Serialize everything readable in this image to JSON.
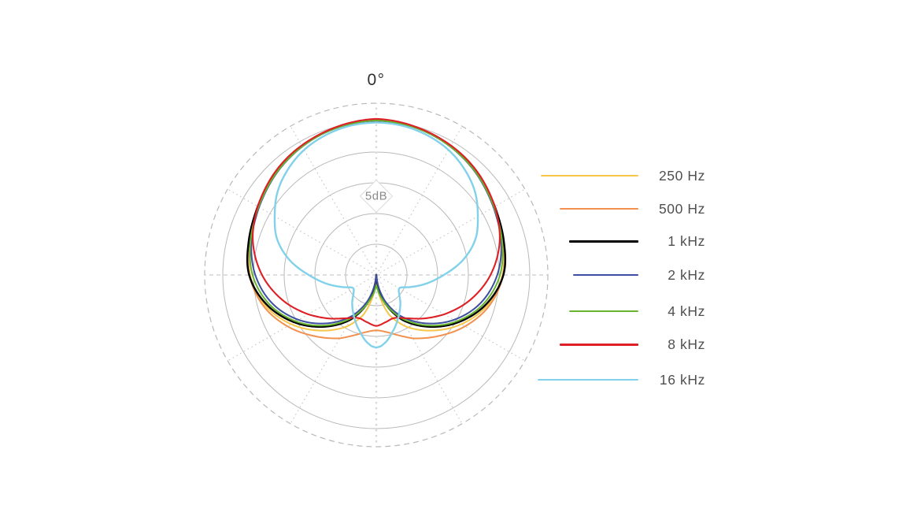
{
  "labels": {
    "zero_degree": "0°",
    "ring_label": "5dB"
  },
  "legend": {
    "items": [
      {
        "label": "250 Hz",
        "color": "#F6C649",
        "line_length": 124
      },
      {
        "label": "500 Hz",
        "color": "#F2914F",
        "line_length": 100
      },
      {
        "label": "1 kHz",
        "color": "#000000",
        "line_length": 88
      },
      {
        "label": "2 kHz",
        "color": "#3D4EA0",
        "line_length": 83
      },
      {
        "label": "4 kHz",
        "color": "#68B42E",
        "line_length": 88
      },
      {
        "label": "8 kHz",
        "color": "#DE1F26",
        "line_length": 100
      },
      {
        "label": "16 kHz",
        "color": "#82D1EA",
        "line_length": 128
      }
    ]
  },
  "chart_data": {
    "type": "line",
    "layout": "polar",
    "title": "",
    "angle_zero_label": "0°",
    "radial_ring_label": "5dB",
    "db_per_ring": 5,
    "ring_levels_db": [
      -20,
      -15,
      -10,
      -5,
      0
    ],
    "r_axis_min_db": -25,
    "outer_boundary_style": "dashed",
    "spoke_interval_deg": 30,
    "mirror_symmetric": true,
    "series": [
      {
        "name": "250 Hz",
        "color": "#F6C649",
        "points_deg_db": [
          [
            0,
            0.1
          ],
          [
            20,
            -0.35
          ],
          [
            40,
            -1.4
          ],
          [
            60,
            -2.9
          ],
          [
            75,
            -3.7
          ],
          [
            90,
            -4.45
          ],
          [
            105,
            -6.2
          ],
          [
            120,
            -9.0
          ],
          [
            135,
            -12.2
          ],
          [
            150,
            -15.3
          ],
          [
            162,
            -18.2
          ],
          [
            171,
            -21.5
          ],
          [
            177,
            -24.2
          ],
          [
            180,
            -26
          ]
        ]
      },
      {
        "name": "500 Hz",
        "color": "#F2914F",
        "points_deg_db": [
          [
            0,
            0.1
          ],
          [
            20,
            -0.3
          ],
          [
            40,
            -1.3
          ],
          [
            60,
            -2.75
          ],
          [
            75,
            -3.6
          ],
          [
            90,
            -4.35
          ],
          [
            105,
            -5.9
          ],
          [
            120,
            -8.3
          ],
          [
            135,
            -10.9
          ],
          [
            150,
            -13.1
          ],
          [
            162,
            -14.8
          ],
          [
            172,
            -15.7
          ],
          [
            180,
            -16.0
          ]
        ]
      },
      {
        "name": "1 kHz",
        "color": "#000000",
        "points_deg_db": [
          [
            0,
            0.25
          ],
          [
            20,
            -0.3
          ],
          [
            40,
            -1.3
          ],
          [
            60,
            -2.7
          ],
          [
            75,
            -3.5
          ],
          [
            90,
            -4.3
          ],
          [
            105,
            -6.5
          ],
          [
            120,
            -9.6
          ],
          [
            135,
            -13.1
          ],
          [
            150,
            -16.6
          ],
          [
            162,
            -20.0
          ],
          [
            172,
            -23.4
          ],
          [
            180,
            -26
          ]
        ]
      },
      {
        "name": "2 kHz",
        "color": "#3D4EA0",
        "points_deg_db": [
          [
            0,
            0.1
          ],
          [
            20,
            -0.4
          ],
          [
            40,
            -1.5
          ],
          [
            60,
            -2.95
          ],
          [
            75,
            -3.95
          ],
          [
            90,
            -5.3
          ],
          [
            105,
            -7.4
          ],
          [
            120,
            -10.4
          ],
          [
            135,
            -13.9
          ],
          [
            150,
            -17.4
          ],
          [
            162,
            -20.7
          ],
          [
            172,
            -23.8
          ],
          [
            180,
            -26
          ]
        ]
      },
      {
        "name": "4 kHz",
        "color": "#68B42E",
        "points_deg_db": [
          [
            0,
            0.15
          ],
          [
            20,
            -0.4
          ],
          [
            40,
            -1.45
          ],
          [
            60,
            -2.85
          ],
          [
            75,
            -3.8
          ],
          [
            90,
            -4.85
          ],
          [
            105,
            -6.9
          ],
          [
            120,
            -9.9
          ],
          [
            135,
            -13.4
          ],
          [
            150,
            -16.9
          ],
          [
            162,
            -19.9
          ],
          [
            172,
            -22.0
          ],
          [
            180,
            -23.3
          ]
        ]
      },
      {
        "name": "8 kHz",
        "color": "#DE1F26",
        "points_deg_db": [
          [
            0,
            0.4
          ],
          [
            20,
            -0.25
          ],
          [
            40,
            -1.2
          ],
          [
            60,
            -2.7
          ],
          [
            75,
            -4.2
          ],
          [
            90,
            -6.4
          ],
          [
            105,
            -9.2
          ],
          [
            120,
            -12.2
          ],
          [
            133,
            -14.6
          ],
          [
            145,
            -16.4
          ],
          [
            157,
            -17.4
          ],
          [
            168,
            -17.2
          ],
          [
            180,
            -16.7
          ]
        ]
      },
      {
        "name": "16 kHz",
        "color": "#82D1EA",
        "points_deg_db": [
          [
            0,
            -0.2
          ],
          [
            10,
            -0.35
          ],
          [
            20,
            -0.8
          ],
          [
            30,
            -1.5
          ],
          [
            40,
            -2.6
          ],
          [
            50,
            -4.0
          ],
          [
            60,
            -5.9
          ],
          [
            70,
            -7.8
          ],
          [
            80,
            -10.6
          ],
          [
            90,
            -14.0
          ],
          [
            100,
            -16.8
          ],
          [
            110,
            -19.2
          ],
          [
            118,
            -20.6
          ],
          [
            128,
            -20.3
          ],
          [
            140,
            -18.9
          ],
          [
            152,
            -17.3
          ],
          [
            164,
            -15.4
          ],
          [
            174,
            -13.7
          ],
          [
            180,
            -13.2
          ]
        ]
      }
    ]
  }
}
